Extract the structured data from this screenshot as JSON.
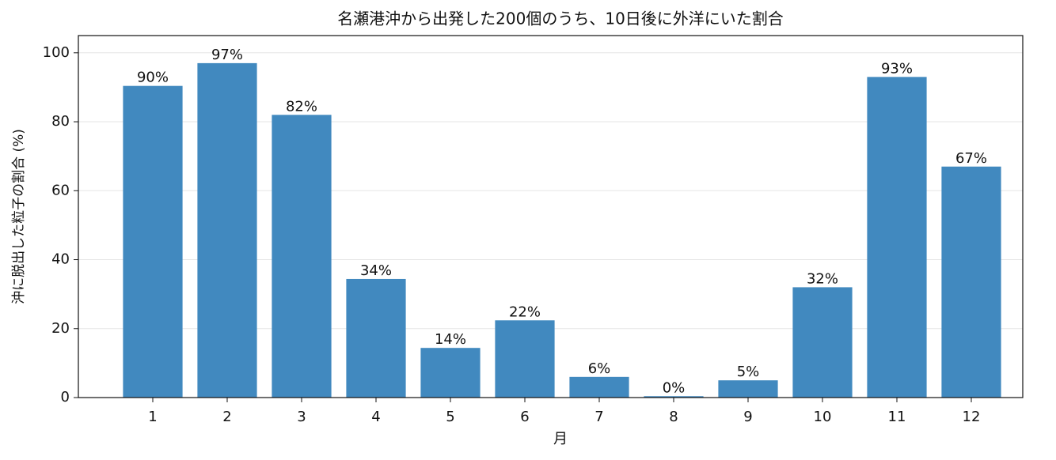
{
  "chart_data": {
    "type": "bar",
    "title": "名瀬港沖から出発した200個のうち、10日後に外洋にいた割合",
    "x_label": "月",
    "y_label": "沖に脱出した粒子の割合 (%)",
    "categories": [
      "1",
      "2",
      "3",
      "4",
      "5",
      "6",
      "7",
      "8",
      "9",
      "10",
      "11",
      "12"
    ],
    "values": [
      90.4,
      97,
      82,
      34.4,
      14.4,
      22.4,
      6,
      0.4,
      5,
      32,
      93,
      67
    ],
    "value_labels": [
      "90%",
      "97%",
      "82%",
      "34%",
      "14%",
      "22%",
      "6%",
      "0%",
      "5%",
      "32%",
      "93%",
      "67%"
    ],
    "color": "#4189bf",
    "ylim": [
      0,
      105
    ],
    "yticks": [
      0,
      20,
      40,
      60,
      80,
      100
    ],
    "grid": true
  }
}
